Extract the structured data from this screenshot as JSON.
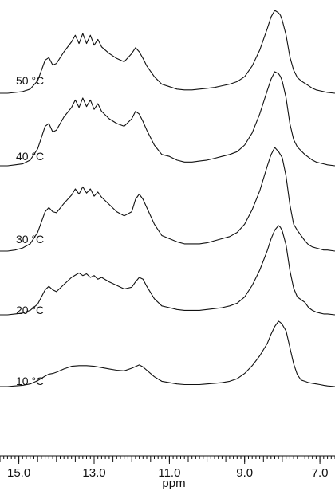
{
  "chart_data": {
    "type": "line",
    "title": "",
    "xlabel": "ppm",
    "ylabel": "",
    "xlim": [
      15.5,
      6.6
    ],
    "x_reversed": true,
    "grid": false,
    "legend": "none",
    "x_ticks": [
      15.0,
      13.0,
      11.0,
      9.0,
      7.0
    ],
    "x_tick_labels": [
      "15.0",
      "13.0",
      "11.0",
      "9.0",
      "7.0"
    ],
    "minor_tick_step": 0.1,
    "series": [
      {
        "name": "10 °C",
        "x": [
          15.5,
          15.3,
          15.1,
          14.9,
          14.7,
          14.5,
          14.3,
          14.2,
          14.1,
          14.0,
          13.8,
          13.6,
          13.4,
          13.2,
          13.0,
          12.8,
          12.6,
          12.4,
          12.2,
          12.0,
          11.8,
          11.7,
          11.6,
          11.4,
          11.2,
          11.0,
          10.8,
          10.6,
          10.4,
          10.2,
          10.0,
          9.8,
          9.6,
          9.4,
          9.2,
          9.0,
          8.8,
          8.6,
          8.4,
          8.3,
          8.2,
          8.1,
          8.05,
          8.0,
          7.9,
          7.8,
          7.7,
          7.6,
          7.5,
          7.4,
          7.3,
          7.2,
          7.1,
          7.0,
          6.9,
          6.8,
          6.6
        ],
        "y": [
          0,
          0,
          0.01,
          0.02,
          0.04,
          0.09,
          0.16,
          0.19,
          0.2,
          0.22,
          0.27,
          0.31,
          0.32,
          0.32,
          0.31,
          0.29,
          0.27,
          0.25,
          0.24,
          0.28,
          0.33,
          0.3,
          0.25,
          0.15,
          0.08,
          0.06,
          0.04,
          0.03,
          0.03,
          0.03,
          0.04,
          0.05,
          0.06,
          0.08,
          0.12,
          0.2,
          0.32,
          0.47,
          0.66,
          0.8,
          0.92,
          1.0,
          0.98,
          0.95,
          0.85,
          0.6,
          0.35,
          0.18,
          0.1,
          0.08,
          0.06,
          0.05,
          0.04,
          0.03,
          0.02,
          0.01,
          0
        ]
      },
      {
        "name": "20 °C",
        "x": [
          15.5,
          15.3,
          15.1,
          14.9,
          14.7,
          14.5,
          14.3,
          14.2,
          14.1,
          14.0,
          13.8,
          13.6,
          13.4,
          13.3,
          13.2,
          13.1,
          13.0,
          12.9,
          12.8,
          12.6,
          12.4,
          12.2,
          12.0,
          11.9,
          11.8,
          11.7,
          11.6,
          11.4,
          11.2,
          11.0,
          10.8,
          10.6,
          10.4,
          10.2,
          10.0,
          9.8,
          9.6,
          9.4,
          9.2,
          9.0,
          8.8,
          8.6,
          8.4,
          8.3,
          8.2,
          8.1,
          8.05,
          8.0,
          7.9,
          7.8,
          7.7,
          7.6,
          7.5,
          7.4,
          7.3,
          7.2,
          7.1,
          7.0,
          6.9,
          6.8,
          6.6
        ],
        "y": [
          0,
          0,
          0.01,
          0.02,
          0.05,
          0.12,
          0.28,
          0.32,
          0.28,
          0.26,
          0.34,
          0.42,
          0.47,
          0.44,
          0.46,
          0.42,
          0.44,
          0.4,
          0.42,
          0.37,
          0.33,
          0.29,
          0.31,
          0.37,
          0.42,
          0.4,
          0.32,
          0.18,
          0.1,
          0.08,
          0.06,
          0.05,
          0.05,
          0.05,
          0.06,
          0.07,
          0.08,
          0.1,
          0.13,
          0.2,
          0.33,
          0.5,
          0.72,
          0.85,
          0.95,
          1.0,
          0.98,
          0.94,
          0.78,
          0.5,
          0.3,
          0.2,
          0.17,
          0.14,
          0.08,
          0.05,
          0.03,
          0.02,
          0.01,
          0.01,
          0
        ]
      },
      {
        "name": "30 °C",
        "x": [
          15.5,
          15.3,
          15.1,
          14.9,
          14.7,
          14.5,
          14.3,
          14.2,
          14.1,
          14.0,
          13.8,
          13.6,
          13.5,
          13.4,
          13.3,
          13.2,
          13.1,
          13.0,
          12.9,
          12.8,
          12.6,
          12.4,
          12.2,
          12.0,
          11.9,
          11.8,
          11.7,
          11.6,
          11.4,
          11.2,
          11.0,
          10.8,
          10.6,
          10.4,
          10.2,
          10.0,
          9.8,
          9.6,
          9.4,
          9.2,
          9.0,
          8.8,
          8.6,
          8.4,
          8.3,
          8.2,
          8.1,
          8.05,
          8.0,
          7.9,
          7.8,
          7.7,
          7.6,
          7.5,
          7.4,
          7.3,
          7.2,
          7.1,
          7.0,
          6.9,
          6.8,
          6.6
        ],
        "y": [
          0,
          0,
          0.01,
          0.03,
          0.07,
          0.18,
          0.38,
          0.42,
          0.38,
          0.37,
          0.46,
          0.54,
          0.6,
          0.55,
          0.62,
          0.56,
          0.6,
          0.53,
          0.57,
          0.52,
          0.45,
          0.38,
          0.34,
          0.38,
          0.5,
          0.55,
          0.5,
          0.42,
          0.26,
          0.15,
          0.12,
          0.09,
          0.07,
          0.07,
          0.07,
          0.08,
          0.1,
          0.12,
          0.14,
          0.18,
          0.26,
          0.4,
          0.58,
          0.82,
          0.93,
          1.0,
          0.96,
          0.93,
          0.9,
          0.72,
          0.45,
          0.26,
          0.2,
          0.15,
          0.1,
          0.06,
          0.04,
          0.03,
          0.02,
          0.01,
          0.01,
          0
        ]
      },
      {
        "name": "40 °C",
        "x": [
          15.5,
          15.3,
          15.1,
          14.9,
          14.7,
          14.5,
          14.3,
          14.2,
          14.1,
          14.0,
          13.8,
          13.6,
          13.5,
          13.4,
          13.3,
          13.2,
          13.1,
          13.0,
          12.9,
          12.8,
          12.6,
          12.4,
          12.2,
          12.0,
          11.9,
          11.8,
          11.7,
          11.6,
          11.4,
          11.2,
          11.0,
          10.8,
          10.6,
          10.4,
          10.2,
          10.0,
          9.8,
          9.6,
          9.4,
          9.2,
          9.0,
          8.8,
          8.6,
          8.4,
          8.3,
          8.2,
          8.1,
          8.05,
          8.0,
          7.9,
          7.8,
          7.7,
          7.6,
          7.5,
          7.4,
          7.3,
          7.2,
          7.1,
          7.0,
          6.9,
          6.8,
          6.6
        ],
        "y": [
          0,
          0,
          0.01,
          0.02,
          0.06,
          0.18,
          0.42,
          0.45,
          0.36,
          0.38,
          0.52,
          0.62,
          0.7,
          0.62,
          0.72,
          0.63,
          0.7,
          0.6,
          0.66,
          0.58,
          0.5,
          0.45,
          0.42,
          0.5,
          0.58,
          0.55,
          0.47,
          0.38,
          0.22,
          0.12,
          0.1,
          0.06,
          0.04,
          0.04,
          0.05,
          0.06,
          0.08,
          0.1,
          0.12,
          0.15,
          0.22,
          0.35,
          0.55,
          0.8,
          0.92,
          1.0,
          0.98,
          0.95,
          0.9,
          0.72,
          0.45,
          0.28,
          0.2,
          0.16,
          0.12,
          0.09,
          0.06,
          0.04,
          0.03,
          0.02,
          0.01,
          0
        ]
      },
      {
        "name": "50 °C",
        "x": [
          15.5,
          15.3,
          15.1,
          14.9,
          14.7,
          14.5,
          14.3,
          14.2,
          14.1,
          14.0,
          13.8,
          13.6,
          13.5,
          13.4,
          13.3,
          13.2,
          13.1,
          13.0,
          12.9,
          12.8,
          12.6,
          12.4,
          12.2,
          12.0,
          11.9,
          11.8,
          11.7,
          11.6,
          11.4,
          11.2,
          11.0,
          10.8,
          10.6,
          10.4,
          10.2,
          10.0,
          9.8,
          9.6,
          9.4,
          9.2,
          9.0,
          8.8,
          8.6,
          8.4,
          8.3,
          8.2,
          8.1,
          8.05,
          8.0,
          7.9,
          7.8,
          7.7,
          7.6,
          7.5,
          7.4,
          7.3,
          7.2,
          7.1,
          7.0,
          6.9,
          6.8,
          6.6
        ],
        "y": [
          0,
          0,
          0.01,
          0.02,
          0.05,
          0.15,
          0.4,
          0.43,
          0.34,
          0.36,
          0.5,
          0.62,
          0.7,
          0.6,
          0.72,
          0.6,
          0.7,
          0.58,
          0.65,
          0.56,
          0.48,
          0.42,
          0.38,
          0.48,
          0.55,
          0.5,
          0.42,
          0.33,
          0.2,
          0.11,
          0.08,
          0.05,
          0.04,
          0.04,
          0.05,
          0.06,
          0.07,
          0.09,
          0.11,
          0.14,
          0.2,
          0.33,
          0.52,
          0.78,
          0.92,
          1.0,
          0.97,
          0.94,
          0.88,
          0.7,
          0.44,
          0.28,
          0.19,
          0.15,
          0.12,
          0.09,
          0.06,
          0.04,
          0.03,
          0.02,
          0.01,
          0
        ]
      }
    ]
  }
}
